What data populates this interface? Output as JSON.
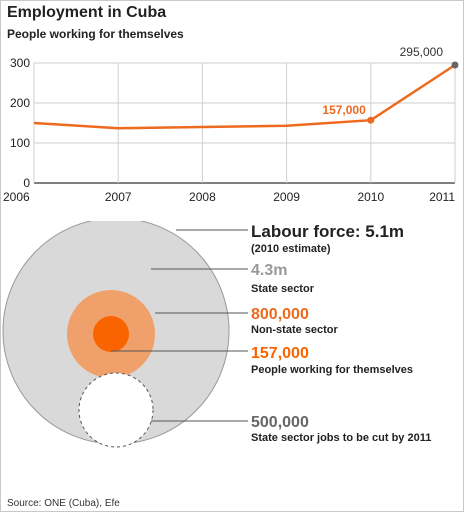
{
  "title": "Employment in Cuba",
  "subtitle": "People working for themselves",
  "source": "Source: ONE (Cuba), Efe",
  "colors": {
    "line": "#ee6a1f",
    "grid": "#cfcfcf",
    "state": "#d9d9d9",
    "nonstate": "#f0a06b",
    "self": "#fa6400",
    "endpoint": "#666666"
  },
  "chart_data": {
    "type": "line",
    "x": [
      2006,
      2007,
      2008,
      2009,
      2010,
      2011
    ],
    "series": [
      {
        "values": [
          150,
          137,
          140,
          143,
          157,
          295
        ]
      }
    ],
    "ylim": [
      0,
      300
    ],
    "yticks": [
      0,
      100,
      200,
      300
    ],
    "xticks": [
      2006,
      2007,
      2008,
      2009,
      2010,
      2011
    ],
    "grid": true,
    "annotations": [
      {
        "x": 2010,
        "label": "157,000"
      },
      {
        "x": 2011,
        "label": "295,000"
      }
    ]
  },
  "diagram": {
    "labour": {
      "value": "Labour force: 5.1m",
      "note": "(2010 estimate)"
    },
    "state": {
      "value": "4.3m",
      "label": "State sector"
    },
    "nonstate": {
      "value": "800,000",
      "label": "Non-state sector"
    },
    "self": {
      "value": "157,000",
      "label": "People working for themselves"
    },
    "cuts": {
      "value": "500,000",
      "label": "State sector jobs to be cut by 2011"
    }
  }
}
